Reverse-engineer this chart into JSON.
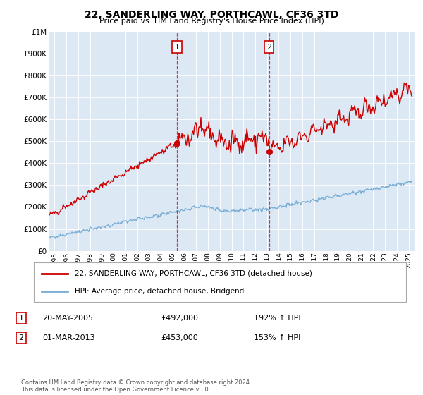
{
  "title": "22, SANDERLING WAY, PORTHCAWL, CF36 3TD",
  "subtitle": "Price paid vs. HM Land Registry's House Price Index (HPI)",
  "legend_line1": "22, SANDERLING WAY, PORTHCAWL, CF36 3TD (detached house)",
  "legend_line2": "HPI: Average price, detached house, Bridgend",
  "transaction1_date": "20-MAY-2005",
  "transaction1_price": "£492,000",
  "transaction1_hpi": "192% ↑ HPI",
  "transaction1_year": 2005.38,
  "transaction1_value": 492000,
  "transaction2_date": "01-MAR-2013",
  "transaction2_price": "£453,000",
  "transaction2_hpi": "153% ↑ HPI",
  "transaction2_year": 2013.17,
  "transaction2_value": 453000,
  "hpi_color": "#7aaed6",
  "price_color": "#cc0000",
  "marker_color": "#cc0000",
  "vline_color": "#cc0000",
  "plot_bg_color": "#dce9f5",
  "grid_color": "#ffffff",
  "footer": "Contains HM Land Registry data © Crown copyright and database right 2024.\nThis data is licensed under the Open Government Licence v3.0.",
  "ylim": [
    0,
    1000000
  ],
  "xlim_start": 1994.5,
  "xlim_end": 2025.5
}
